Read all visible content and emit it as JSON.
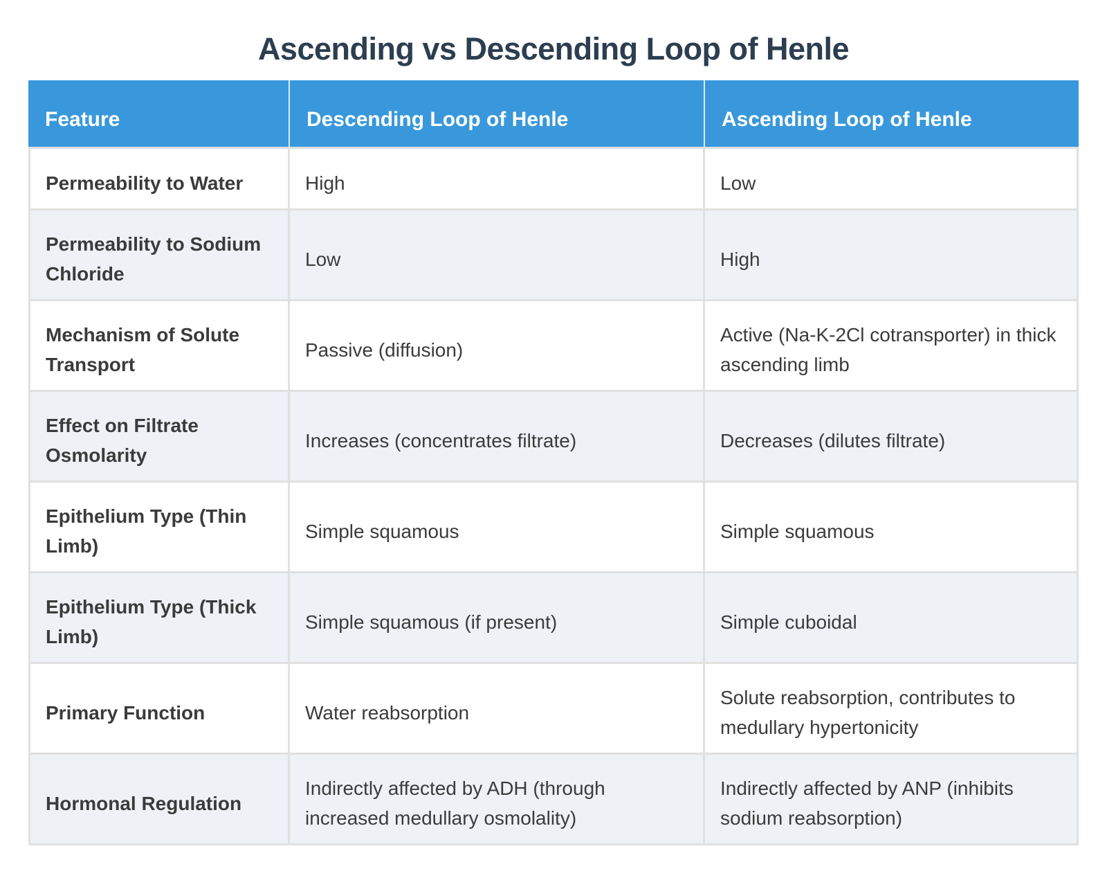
{
  "title": "Ascending vs Descending Loop of Henle",
  "table": {
    "columns": [
      "Feature",
      "Descending Loop of Henle",
      "Ascending Loop of Henle"
    ],
    "rows": [
      {
        "feature": "Permeability to Water",
        "descending": "High",
        "ascending": "Low"
      },
      {
        "feature": "Permeability to Sodium Chloride",
        "descending": "Low",
        "ascending": "High"
      },
      {
        "feature": "Mechanism of Solute Transport",
        "descending": "Passive (diffusion)",
        "ascending": "Active (Na-K-2Cl cotransporter) in thick ascending limb"
      },
      {
        "feature": "Effect on Filtrate Osmolarity",
        "descending": "Increases (concentrates filtrate)",
        "ascending": "Decreases (dilutes filtrate)"
      },
      {
        "feature": "Epithelium Type (Thin Limb)",
        "descending": "Simple squamous",
        "ascending": "Simple squamous"
      },
      {
        "feature": "Epithelium Type (Thick Limb)",
        "descending": "Simple squamous (if present)",
        "ascending": "Simple cuboidal"
      },
      {
        "feature": "Primary Function",
        "descending": "Water reabsorption",
        "ascending": "Solute reabsorption, contributes to medullary hypertonicity"
      },
      {
        "feature": "Hormonal Regulation",
        "descending": "Indirectly affected by ADH (through increased medullary osmolality)",
        "ascending": "Indirectly affected by ANP (inhibits sodium reabsorption)"
      }
    ]
  },
  "colors": {
    "header_bg": "#3998db",
    "header_text": "#ffffff",
    "row_white": "#ffffff",
    "row_stripe": "#eef2f7",
    "border": "#e0e0e0",
    "header_divider": "#dcedf9",
    "title_text": "#2c3e50",
    "body_text": "#3b3b3b"
  }
}
